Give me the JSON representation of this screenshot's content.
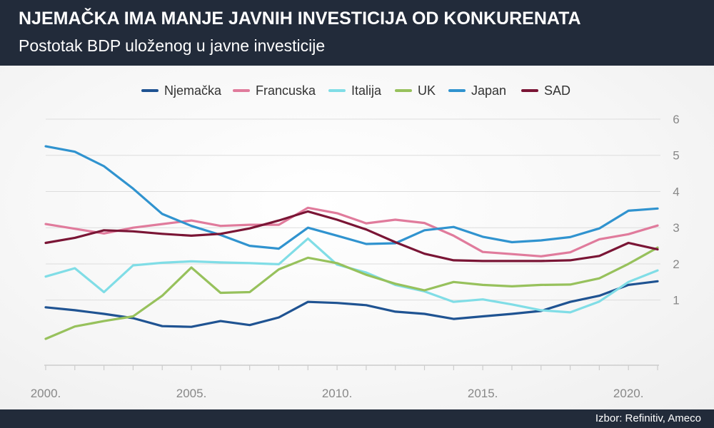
{
  "header": {
    "title": "NJEMAČKA IMA MANJE JAVNIH INVESTICIJA OD KONKURENATA",
    "subtitle": "Postotak BDP uloženog u javne investicije"
  },
  "footer": {
    "source": "Izbor: Refinitiv, Ameco"
  },
  "chart_data": {
    "type": "line",
    "title": "NJEMAČKA IMA MANJE JAVNIH INVESTICIJA OD KONKURENATA",
    "subtitle": "Postotak BDP uloženog u javne investicije",
    "x": [
      2000,
      2001,
      2002,
      2003,
      2004,
      2005,
      2006,
      2007,
      2008,
      2009,
      2010,
      2011,
      2012,
      2013,
      2014,
      2015,
      2016,
      2017,
      2018,
      2019,
      2020,
      2021
    ],
    "x_tick_values": [
      2000,
      2005,
      2010,
      2015,
      2020
    ],
    "x_tick_labels": [
      "2000.",
      "2005.",
      "2010.",
      "2015.",
      "2020."
    ],
    "y_ticks": [
      1,
      2,
      3,
      4,
      5,
      6
    ],
    "y_tick_labels": [
      "1",
      "2",
      "3",
      "4",
      "5",
      "6"
    ],
    "xlim": [
      2000,
      2021
    ],
    "ylim": [
      -0.8,
      6
    ],
    "y_axis_side": "right",
    "grid": true,
    "legend_position": "top",
    "series": [
      {
        "name": "Njemačka",
        "color": "#1f5392",
        "values": [
          0.8,
          0.72,
          0.62,
          0.5,
          0.28,
          0.26,
          0.42,
          0.31,
          0.52,
          0.95,
          0.92,
          0.86,
          0.68,
          0.62,
          0.48,
          0.55,
          0.62,
          0.7,
          0.95,
          1.12,
          1.42,
          1.52
        ]
      },
      {
        "name": "Francuska",
        "color": "#e07b9c",
        "values": [
          3.1,
          2.97,
          2.84,
          3.0,
          3.1,
          3.2,
          3.05,
          3.08,
          3.08,
          3.55,
          3.4,
          3.12,
          3.22,
          3.13,
          2.78,
          2.33,
          2.27,
          2.21,
          2.32,
          2.68,
          2.82,
          3.06
        ]
      },
      {
        "name": "Italija",
        "color": "#80dde6",
        "values": [
          1.65,
          1.88,
          1.22,
          1.96,
          2.03,
          2.07,
          2.04,
          2.02,
          1.99,
          2.7,
          1.98,
          1.76,
          1.42,
          1.24,
          0.95,
          1.02,
          0.88,
          0.72,
          0.66,
          0.96,
          1.5,
          1.82
        ]
      },
      {
        "name": "UK",
        "color": "#97c15c",
        "values": [
          -0.07,
          0.27,
          0.42,
          0.55,
          1.12,
          1.9,
          1.2,
          1.22,
          1.85,
          2.17,
          2.02,
          1.7,
          1.45,
          1.27,
          1.5,
          1.42,
          1.38,
          1.42,
          1.43,
          1.6,
          2.0,
          2.45
        ]
      },
      {
        "name": "Japan",
        "color": "#3093cf",
        "values": [
          5.25,
          5.1,
          4.7,
          4.08,
          3.38,
          3.05,
          2.8,
          2.5,
          2.42,
          3.0,
          2.78,
          2.55,
          2.57,
          2.93,
          3.02,
          2.75,
          2.6,
          2.65,
          2.74,
          2.98,
          3.47,
          3.53
        ]
      },
      {
        "name": "SAD",
        "color": "#7a1535",
        "values": [
          2.58,
          2.72,
          2.93,
          2.9,
          2.83,
          2.78,
          2.83,
          2.98,
          3.2,
          3.45,
          3.22,
          2.95,
          2.6,
          2.28,
          2.1,
          2.08,
          2.08,
          2.08,
          2.1,
          2.22,
          2.58,
          2.4
        ]
      }
    ]
  }
}
